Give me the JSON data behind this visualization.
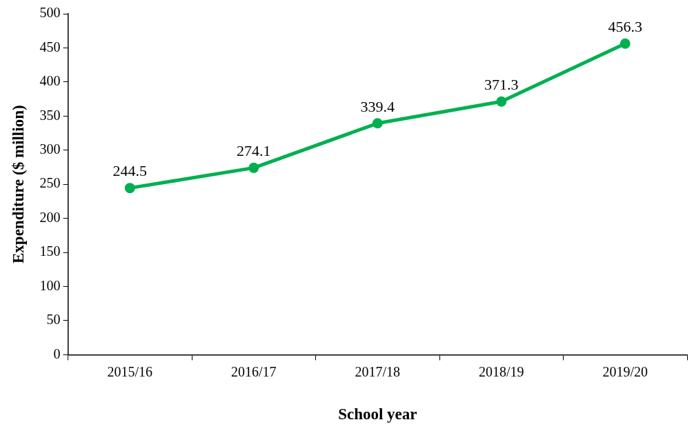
{
  "chart_data": {
    "type": "line",
    "xlabel": "School year",
    "ylabel": "Expenditure ($ million)",
    "categories": [
      "2015/16",
      "2016/17",
      "2017/18",
      "2018/19",
      "2019/20"
    ],
    "series": [
      {
        "color": "#00b050",
        "values": [
          244.5,
          274.1,
          339.4,
          371.3,
          456.3
        ]
      }
    ],
    "ylim": [
      0,
      500
    ],
    "yticks": [
      0,
      50,
      100,
      150,
      200,
      250,
      300,
      350,
      400,
      450,
      500
    ],
    "grid": false,
    "legend": false,
    "marker": "circle",
    "line_style": "solid",
    "data_labels": true
  }
}
